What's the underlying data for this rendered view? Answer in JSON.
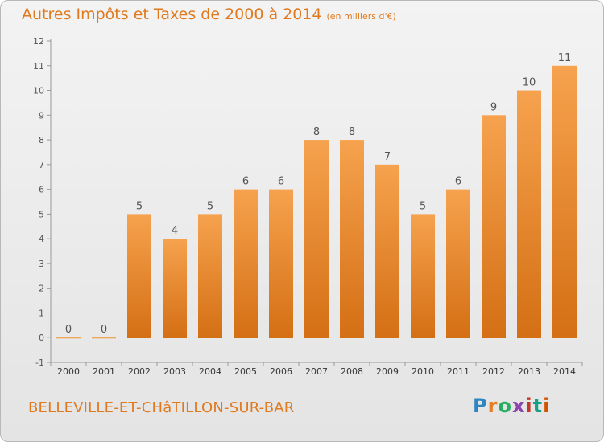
{
  "header": {
    "title": "Autres Impôts et Taxes de 2000 à 2014",
    "unit": "(en milliers d'€)"
  },
  "footer": {
    "commune": "BELLEVILLE-ET-CHâTILLON-SUR-BAR",
    "brand": "Proxiti",
    "brand_colors": [
      "#2e86c1",
      "#e67e22",
      "#27ae60",
      "#8e44ad",
      "#c0392b",
      "#16a085",
      "#d35400"
    ]
  },
  "chart_data": {
    "type": "bar",
    "title": "Autres Impôts et Taxes de 2000 à 2014",
    "xlabel": "",
    "ylabel": "",
    "categories": [
      "2000",
      "2001",
      "2002",
      "2003",
      "2004",
      "2005",
      "2006",
      "2007",
      "2008",
      "2009",
      "2010",
      "2011",
      "2012",
      "2013",
      "2014"
    ],
    "values": [
      0,
      0,
      5,
      4,
      5,
      6,
      6,
      8,
      8,
      7,
      5,
      6,
      9,
      10,
      11
    ],
    "y_ticks": [
      -1,
      0,
      1,
      2,
      3,
      4,
      5,
      6,
      7,
      8,
      9,
      10,
      11,
      12
    ],
    "ylim": [
      -1,
      12
    ],
    "grid": false,
    "bar_color": "#f0902c",
    "bar_color_dark": "#d46f14"
  }
}
